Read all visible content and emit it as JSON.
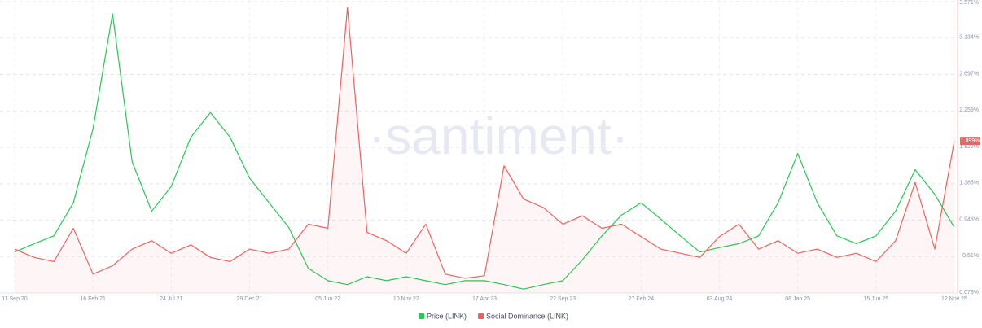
{
  "chart_data": {
    "type": "line",
    "watermark": "·santiment·",
    "categories": [
      "11 Sep 20",
      null,
      null,
      null,
      "16 Feb 21",
      null,
      null,
      null,
      "24 Jul 21",
      null,
      null,
      null,
      "29 Dec 21",
      null,
      null,
      null,
      "05 Jun 22",
      null,
      null,
      null,
      "10 Nov 22",
      null,
      null,
      null,
      "17 Apr 23",
      null,
      null,
      null,
      "22 Sep 23",
      null,
      null,
      null,
      "27 Feb 24",
      null,
      null,
      null,
      "03 Aug 24",
      null,
      null,
      null,
      "08 Jan 25",
      null,
      null,
      null,
      "15 Jun 25",
      null,
      null,
      null,
      "12 Nov 25"
    ],
    "series": [
      {
        "name": "Price (LINK)",
        "color": "#26c953",
        "values": [
          9.3,
          10.8,
          12.2,
          18.1,
          31.3,
          51.8,
          25.4,
          16.6,
          21.0,
          29.8,
          34.2,
          29.8,
          22.5,
          18.1,
          13.7,
          6.4,
          4.2,
          3.5,
          4.9,
          4.2,
          4.9,
          4.2,
          3.5,
          4.2,
          4.2,
          3.5,
          2.7,
          3.5,
          4.2,
          7.9,
          12.2,
          15.9,
          18.1,
          15.2,
          12.2,
          9.3,
          10.1,
          10.8,
          12.2,
          18.1,
          26.9,
          18.1,
          12.2,
          10.8,
          12.2,
          16.6,
          24.0,
          19.6,
          13.7
        ]
      },
      {
        "name": "Social Dominance (LINK)",
        "color": "#f2615f",
        "axis": "y2",
        "values": [
          0.6,
          0.5,
          0.45,
          0.85,
          0.3,
          0.4,
          0.6,
          0.7,
          0.55,
          0.65,
          0.5,
          0.45,
          0.6,
          0.55,
          0.6,
          0.9,
          0.85,
          3.5,
          0.8,
          0.7,
          0.55,
          0.9,
          0.3,
          0.25,
          0.28,
          1.6,
          1.2,
          1.1,
          0.9,
          1.0,
          0.85,
          0.9,
          0.75,
          0.6,
          0.55,
          0.5,
          0.75,
          0.9,
          0.6,
          0.7,
          0.55,
          0.6,
          0.5,
          0.55,
          0.45,
          0.7,
          1.4,
          0.6,
          1.899
        ]
      }
    ],
    "ylim": [
      2,
      54
    ],
    "y2lim": [
      0.073,
      3.571
    ],
    "y2ticks": [
      {
        "value": 0.073,
        "label": "0.073%"
      },
      {
        "value": 0.51,
        "label": "0.51%"
      },
      {
        "value": 0.948,
        "label": "0.948%"
      },
      {
        "value": 1.385,
        "label": "1.385%"
      },
      {
        "value": 1.822,
        "label": "1.822%"
      },
      {
        "value": 2.259,
        "label": "2.259%"
      },
      {
        "value": 2.697,
        "label": "2.697%"
      },
      {
        "value": 3.134,
        "label": "3.134%"
      },
      {
        "value": 3.571,
        "label": "3.571%"
      }
    ],
    "y2_marker": {
      "value": 1.899,
      "label": "1.899%"
    },
    "grid": true
  }
}
